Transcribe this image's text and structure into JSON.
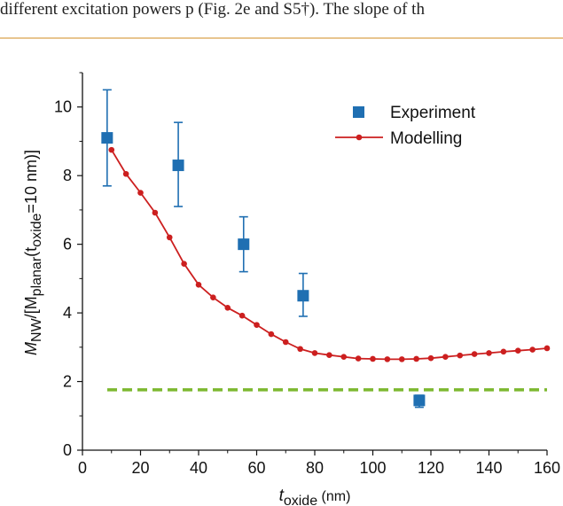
{
  "header_text": "different excitation powers p (Fig. 2e and S5†). The slope of th",
  "colors": {
    "experiment": "#1f6fb2",
    "modelling": "#cc1f1f",
    "reference": "#7cb82f",
    "rule": "#e8c58f"
  },
  "chart_data": {
    "type": "scatter",
    "title": "",
    "xlabel": {
      "main": "t",
      "sub": "oxide",
      "unit": " (nm)"
    },
    "ylabel": {
      "main": "M",
      "sub1": "NW",
      "mid": "/[M",
      "sub2": "planar",
      "mid2": "(t",
      "sub3": "oxide",
      "tail": "=10 nm)]"
    },
    "xlim": [
      0,
      160
    ],
    "ylim": [
      0,
      11
    ],
    "xticks": [
      "0",
      "20",
      "40",
      "60",
      "80",
      "100",
      "120",
      "140",
      "160"
    ],
    "yticks": [
      "0",
      "2",
      "4",
      "6",
      "8",
      "10"
    ],
    "legend": {
      "placement": "top-right",
      "entries": [
        "Experiment",
        "Modelling"
      ]
    },
    "series": [
      {
        "name": "Experiment",
        "kind": "points-with-errorbars",
        "x": [
          8.5,
          33,
          55.5,
          76,
          116
        ],
        "y": [
          9.1,
          8.3,
          6.0,
          4.5,
          1.45
        ],
        "err_low": [
          1.4,
          1.2,
          0.8,
          0.6,
          0.2
        ],
        "err_high": [
          1.4,
          1.25,
          0.8,
          0.65,
          0.15
        ]
      },
      {
        "name": "Modelling",
        "kind": "line-with-markers",
        "x": [
          10,
          15,
          20,
          25,
          30,
          35,
          40,
          45,
          50,
          55,
          60,
          65,
          70,
          75,
          80,
          85,
          90,
          95,
          100,
          105,
          110,
          115,
          120,
          125,
          130,
          135,
          140,
          145,
          150,
          155,
          160
        ],
        "y": [
          8.75,
          8.05,
          7.5,
          6.92,
          6.2,
          5.43,
          4.82,
          4.45,
          4.15,
          3.92,
          3.65,
          3.38,
          3.15,
          2.95,
          2.83,
          2.77,
          2.72,
          2.67,
          2.66,
          2.65,
          2.65,
          2.66,
          2.68,
          2.72,
          2.76,
          2.8,
          2.83,
          2.87,
          2.9,
          2.93,
          2.97
        ]
      },
      {
        "name": "",
        "kind": "horizontal-dashed",
        "y": 1.76
      }
    ]
  }
}
